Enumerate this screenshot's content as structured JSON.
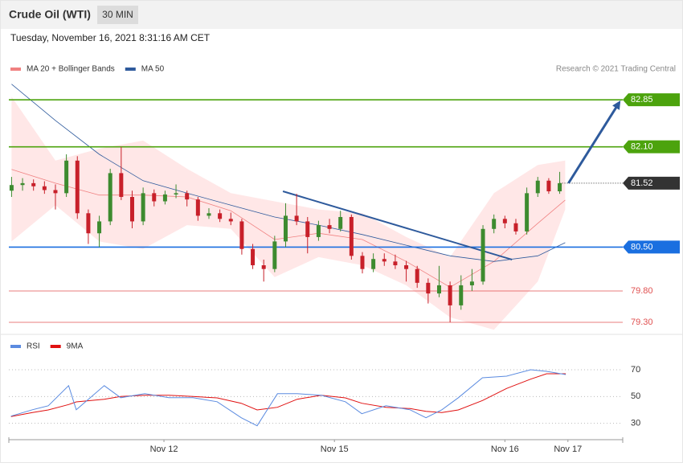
{
  "chart_data": {
    "type": "candlestick",
    "title": "Crude Oil (WTI)",
    "interval": "30 MIN",
    "subtitle": "Tuesday, November 16, 2021 8:31:16 AM CET",
    "credit": "Research © 2021 Trading Central",
    "legend": [
      {
        "name": "MA 20 + Bollinger Bands",
        "color": "#f08080"
      },
      {
        "name": "MA 50",
        "color": "#2e5a9c"
      }
    ],
    "xlim": [
      0,
      112
    ],
    "xticks": [
      {
        "value": 28.3,
        "label": "Nov 12"
      },
      {
        "value": 59.4,
        "label": "Nov 15"
      },
      {
        "value": 90.5,
        "label": "Nov 16"
      },
      {
        "value": 102,
        "label": "Nov 17"
      }
    ],
    "ylim": [
      79.12,
      83.16
    ],
    "x": [
      0.5,
      2.5,
      4.5,
      6.5,
      8.5,
      10.5,
      12.5,
      14.5,
      16.5,
      18.5,
      20.5,
      22.5,
      24.5,
      26.5,
      28.5,
      30.5,
      32.5,
      34.5,
      36.5,
      38.5,
      40.5,
      42.5,
      44.5,
      46.5,
      48.5,
      50.5,
      52.5,
      54.5,
      56.5,
      58.5,
      60.5,
      62.5,
      64.5,
      66.5,
      68.5,
      70.5,
      72.5,
      74.5,
      76.5,
      78.5,
      80.5,
      82.5,
      84.5,
      86.5,
      88.5,
      90.5,
      92.5,
      94.5,
      96.5,
      98.5,
      100.5
    ],
    "candles": [
      [
        81.4,
        81.62,
        81.3,
        81.49
      ],
      [
        81.49,
        81.6,
        81.4,
        81.52
      ],
      [
        81.52,
        81.58,
        81.4,
        81.47
      ],
      [
        81.47,
        81.55,
        81.35,
        81.41
      ],
      [
        81.41,
        81.5,
        81.1,
        81.36
      ],
      [
        81.36,
        81.98,
        81.3,
        81.88
      ],
      [
        81.88,
        81.95,
        80.95,
        81.04
      ],
      [
        81.04,
        81.1,
        80.55,
        80.72
      ],
      [
        80.72,
        81.0,
        80.5,
        80.91
      ],
      [
        80.91,
        81.75,
        80.85,
        81.68
      ],
      [
        81.68,
        82.1,
        81.25,
        81.3
      ],
      [
        81.3,
        81.4,
        80.8,
        80.91
      ],
      [
        80.91,
        81.45,
        80.85,
        81.36
      ],
      [
        81.36,
        81.42,
        81.15,
        81.23
      ],
      [
        81.23,
        81.4,
        81.18,
        81.34
      ],
      [
        81.34,
        81.5,
        81.28,
        81.36
      ],
      [
        81.36,
        81.4,
        81.15,
        81.26
      ],
      [
        81.26,
        81.3,
        80.92,
        81.0
      ],
      [
        81.0,
        81.12,
        80.95,
        81.04
      ],
      [
        81.04,
        81.1,
        80.9,
        80.95
      ],
      [
        80.95,
        81.05,
        80.85,
        80.91
      ],
      [
        80.91,
        80.95,
        80.38,
        80.47
      ],
      [
        80.47,
        80.55,
        80.15,
        80.21
      ],
      [
        80.21,
        80.3,
        79.95,
        80.15
      ],
      [
        80.15,
        80.68,
        80.1,
        80.59
      ],
      [
        80.59,
        81.2,
        80.5,
        81.0
      ],
      [
        81.0,
        81.35,
        80.85,
        80.91
      ],
      [
        80.91,
        80.98,
        80.4,
        80.66
      ],
      [
        80.66,
        80.92,
        80.6,
        80.85
      ],
      [
        80.85,
        80.95,
        80.72,
        80.79
      ],
      [
        80.79,
        81.08,
        80.75,
        80.98
      ],
      [
        80.98,
        81.02,
        80.3,
        80.36
      ],
      [
        80.36,
        80.42,
        80.08,
        80.15
      ],
      [
        80.15,
        80.4,
        80.1,
        80.31
      ],
      [
        80.31,
        80.4,
        80.2,
        80.27
      ],
      [
        80.27,
        80.38,
        80.15,
        80.21
      ],
      [
        80.21,
        80.28,
        79.95,
        80.15
      ],
      [
        80.15,
        80.2,
        79.85,
        79.93
      ],
      [
        79.93,
        80.0,
        79.6,
        79.76
      ],
      [
        79.76,
        80.2,
        79.7,
        79.89
      ],
      [
        79.89,
        79.95,
        79.3,
        79.57
      ],
      [
        79.57,
        80.05,
        79.5,
        79.89
      ],
      [
        79.89,
        80.15,
        79.8,
        79.95
      ],
      [
        79.95,
        80.85,
        79.9,
        80.79
      ],
      [
        80.79,
        81.02,
        80.72,
        80.95
      ],
      [
        80.95,
        81.0,
        80.8,
        80.88
      ],
      [
        80.88,
        80.95,
        80.7,
        80.75
      ],
      [
        80.75,
        81.45,
        80.7,
        81.36
      ],
      [
        81.36,
        81.62,
        81.3,
        81.56
      ],
      [
        81.56,
        81.6,
        81.35,
        81.39
      ],
      [
        81.39,
        81.7,
        81.35,
        81.52
      ]
    ],
    "up_color": "#3d8b2f",
    "down_color": "#c8202a",
    "overlay_x": [
      0.5,
      8.5,
      16.5,
      24.5,
      32.5,
      40.5,
      48.5,
      56.5,
      64.5,
      72.5,
      80.5,
      88.5,
      96.5,
      101.5
    ],
    "band_upper": [
      82.9,
      81.88,
      82.07,
      82.2,
      81.75,
      81.36,
      81.23,
      81.1,
      81.04,
      80.66,
      80.34,
      81.36,
      81.81,
      81.88
    ],
    "band_lower": [
      80.59,
      81.17,
      80.59,
      80.47,
      80.85,
      80.79,
      80.02,
      80.34,
      80.21,
      79.89,
      79.38,
      79.18,
      79.95,
      81.1
    ],
    "ma20": [
      81.74,
      81.52,
      81.33,
      81.33,
      81.3,
      81.08,
      80.62,
      80.72,
      80.62,
      80.27,
      79.86,
      80.27,
      80.88,
      81.25
    ],
    "ma50": [
      83.1,
      82.52,
      81.98,
      81.56,
      81.36,
      81.17,
      80.98,
      80.85,
      80.7,
      80.53,
      80.36,
      80.27,
      80.36,
      80.57
    ],
    "trendline": {
      "x": [
        50.0,
        91.8
      ],
      "values": [
        81.39,
        80.3
      ],
      "color": "#2e5a9c"
    },
    "arrow": {
      "x": [
        102.1,
        111.6
      ],
      "values": [
        81.52,
        82.84
      ],
      "color": "#2e5a9c"
    },
    "levels": [
      {
        "value": 82.85,
        "color": "#4ca30d",
        "style": "tag"
      },
      {
        "value": 82.1,
        "label": "82.10",
        "color": "#4ca30d",
        "style": "tag"
      },
      {
        "value": 81.52,
        "color": "#333333",
        "style": "dotted-tag"
      },
      {
        "value": 80.5,
        "label": "80.50",
        "color": "#1a6fe0",
        "style": "tag"
      },
      {
        "value": 79.8,
        "label": "79.80",
        "color": "#e05050",
        "style": "plain"
      },
      {
        "value": 79.3,
        "label": "79.30",
        "color": "#e05050",
        "style": "plain"
      }
    ],
    "rsi": {
      "legend": [
        {
          "name": "RSI",
          "color": "#5b8be0"
        },
        {
          "name": "9MA",
          "color": "#e01010"
        }
      ],
      "ylim": [
        19,
        94
      ],
      "yticks": [
        70,
        50,
        30
      ],
      "x": [
        0.4,
        4.3,
        7.2,
        10.9,
        12.3,
        17.4,
        20.4,
        24.8,
        29.2,
        33.6,
        38.0,
        42.4,
        45.3,
        49.0,
        52.6,
        57.0,
        61.4,
        64.4,
        68.8,
        73.2,
        76.1,
        79.0,
        82.0,
        86.4,
        90.8,
        95.2,
        98.1,
        101.6
      ],
      "values": [
        35.4,
        40.1,
        43.1,
        58.1,
        40.1,
        58.1,
        49.1,
        52.1,
        49.1,
        49.1,
        46.1,
        34.2,
        28.2,
        52.1,
        52.1,
        50.9,
        46.1,
        37.2,
        43.1,
        40.1,
        34.2,
        40.1,
        49.1,
        64.0,
        65.2,
        70.0,
        68.8,
        66.4
      ],
      "ma9": [
        35,
        38,
        40,
        44,
        46,
        48,
        50,
        51,
        51,
        50,
        49,
        45,
        40,
        42,
        48,
        51,
        49,
        45,
        42,
        41,
        39,
        38,
        40,
        47,
        56,
        63,
        67,
        67
      ]
    }
  }
}
